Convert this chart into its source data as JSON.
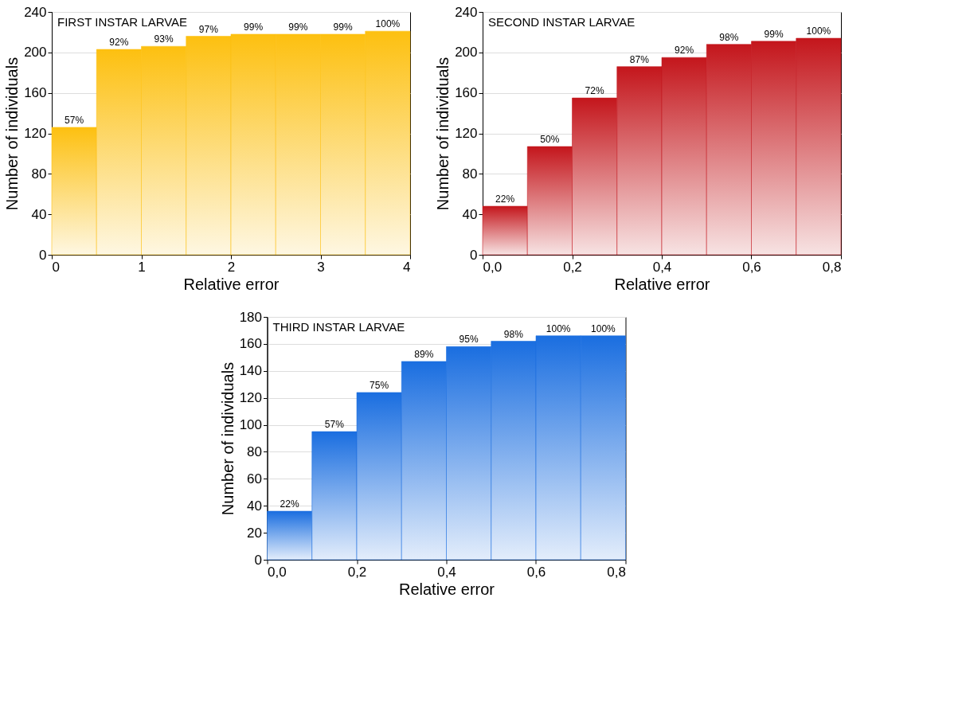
{
  "chart_data": [
    {
      "type": "histogram",
      "title": "FIRST INSTAR LARVAE",
      "xlabel": "Relative error",
      "ylabel": "Number of individuals",
      "bins": [
        0,
        0.5,
        1,
        1.5,
        2,
        2.5,
        3,
        3.5,
        4
      ],
      "series": [
        {
          "color": "#fdc010",
          "values": [
            126,
            203,
            206,
            216,
            218,
            218,
            218,
            221
          ]
        }
      ],
      "annotations": [
        {
          "text": "57%",
          "x": 0.25,
          "y": 126
        },
        {
          "text": "92%",
          "x": 0.75,
          "y": 203
        },
        {
          "text": "93%",
          "x": 1.25,
          "y": 206
        },
        {
          "text": "97%",
          "x": 1.75,
          "y": 216
        },
        {
          "text": "99%",
          "x": 2.25,
          "y": 218
        },
        {
          "text": "99%",
          "x": 2.75,
          "y": 218
        },
        {
          "text": "99%",
          "x": 3.25,
          "y": 218
        },
        {
          "text": "100%",
          "x": 3.75,
          "y": 221
        }
      ],
      "xlim": [
        0,
        4
      ],
      "xticks": [
        0,
        1,
        2,
        3,
        4
      ],
      "ylim": [
        0,
        240
      ],
      "yticks": [
        0,
        40,
        80,
        120,
        160,
        200,
        240
      ],
      "grid": "y"
    },
    {
      "type": "histogram",
      "title": "SECOND INSTAR LARVAE",
      "xlabel": "Relative error",
      "ylabel": "Number of individuals",
      "bins": [
        0,
        0.1,
        0.2,
        0.3,
        0.4,
        0.5,
        0.6,
        0.7,
        0.8
      ],
      "series": [
        {
          "color": "#c4161c",
          "values": [
            48,
            107,
            155,
            186,
            195,
            208,
            211,
            214
          ]
        }
      ],
      "annotations": [
        {
          "text": "22%",
          "x": 0.05,
          "y": 48
        },
        {
          "text": "50%",
          "x": 0.15,
          "y": 107
        },
        {
          "text": "72%",
          "x": 0.25,
          "y": 155
        },
        {
          "text": "87%",
          "x": 0.35,
          "y": 186
        },
        {
          "text": "92%",
          "x": 0.45,
          "y": 195
        },
        {
          "text": "98%",
          "x": 0.55,
          "y": 208
        },
        {
          "text": "99%",
          "x": 0.65,
          "y": 211
        },
        {
          "text": "100%",
          "x": 0.75,
          "y": 214
        }
      ],
      "xlim": [
        0,
        0.8
      ],
      "xticks": [
        {
          "value": 0,
          "label": "0,0"
        },
        {
          "value": 0.2,
          "label": "0,2"
        },
        {
          "value": 0.4,
          "label": "0,4"
        },
        {
          "value": 0.6,
          "label": "0,6"
        },
        {
          "value": 0.8,
          "label": "0,8"
        }
      ],
      "ylim": [
        0,
        240
      ],
      "yticks": [
        0,
        40,
        80,
        120,
        160,
        200,
        240
      ],
      "grid": "y"
    },
    {
      "type": "histogram",
      "title": "THIRD INSTAR LARVAE",
      "xlabel": "Relative error",
      "ylabel": "Number of individuals",
      "bins": [
        0,
        0.1,
        0.2,
        0.3,
        0.4,
        0.5,
        0.6,
        0.7,
        0.8
      ],
      "series": [
        {
          "color": "#1a6ee0",
          "values": [
            36,
            95,
            124,
            147,
            158,
            162,
            166,
            166
          ]
        }
      ],
      "annotations": [
        {
          "text": "22%",
          "x": 0.05,
          "y": 36
        },
        {
          "text": "57%",
          "x": 0.15,
          "y": 95
        },
        {
          "text": "75%",
          "x": 0.25,
          "y": 124
        },
        {
          "text": "89%",
          "x": 0.35,
          "y": 147
        },
        {
          "text": "95%",
          "x": 0.45,
          "y": 158
        },
        {
          "text": "98%",
          "x": 0.55,
          "y": 162
        },
        {
          "text": "100%",
          "x": 0.65,
          "y": 166
        },
        {
          "text": "100%",
          "x": 0.75,
          "y": 166
        }
      ],
      "xlim": [
        0,
        0.8
      ],
      "xticks": [
        {
          "value": 0,
          "label": "0,0"
        },
        {
          "value": 0.2,
          "label": "0,2"
        },
        {
          "value": 0.4,
          "label": "0,4"
        },
        {
          "value": 0.6,
          "label": "0,6"
        },
        {
          "value": 0.8,
          "label": "0,8"
        }
      ],
      "ylim": [
        0,
        180
      ],
      "yticks": [
        0,
        20,
        40,
        60,
        80,
        100,
        120,
        140,
        160,
        180
      ],
      "grid": "y"
    }
  ]
}
